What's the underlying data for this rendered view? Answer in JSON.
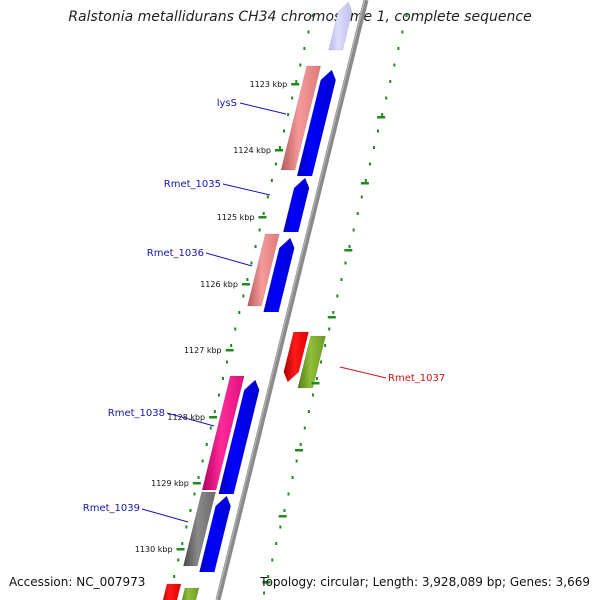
{
  "title": "Ralstonia metallidurans CH34 chromosome 1, complete sequence",
  "footer": {
    "accession_label": "Accession:",
    "accession": "NC_007973",
    "topology_label": "Topology:",
    "topology": "circular",
    "length_label": "Length:",
    "length": "3,928,089 bp",
    "genes_label": "Genes:",
    "genes": "3,669"
  },
  "ruler": {
    "unit": "kbp",
    "ticks": [
      "1123 kbp",
      "1124 kbp",
      "1125 kbp",
      "1126 kbp",
      "1127 kbp",
      "1128 kbp",
      "1129 kbp",
      "1130 kbp"
    ]
  },
  "gene_labels": [
    {
      "name": "lysS",
      "color": "#1515b0"
    },
    {
      "name": "Rmet_1035",
      "color": "#1515b0"
    },
    {
      "name": "Rmet_1036",
      "color": "#1515b0"
    },
    {
      "name": "Rmet_1037",
      "color": "#cc1111"
    },
    {
      "name": "Rmet_1038",
      "color": "#1515b0"
    },
    {
      "name": "Rmet_1039",
      "color": "#1515b0"
    }
  ],
  "colors": {
    "backbone": "#8a8a8a",
    "cds_forward": "#0000f0",
    "cds_faded": "#c8c8f4",
    "rna_salmon": "#f08a8a",
    "rna_magenta": "#f0108a",
    "rna_gray": "#707070",
    "cds_reverse": "#f00000",
    "rna_olive": "#7aa82a",
    "tick_green": "#1f8a1f"
  }
}
